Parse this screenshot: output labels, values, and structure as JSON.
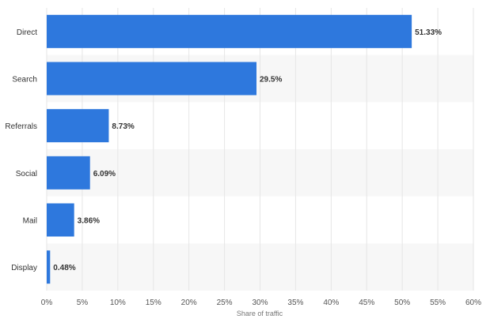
{
  "chart_data": {
    "type": "bar",
    "orientation": "horizontal",
    "categories": [
      "Direct",
      "Search",
      "Referrals",
      "Social",
      "Mail",
      "Display"
    ],
    "values": [
      51.33,
      29.5,
      8.73,
      6.09,
      3.86,
      0.48
    ],
    "value_labels": [
      "51.33%",
      "29.5%",
      "8.73%",
      "6.09%",
      "3.86%",
      "0.48%"
    ],
    "title": "",
    "xlabel": "Share of traffic",
    "ylabel": "",
    "xlim": [
      0,
      60
    ],
    "x_ticks": [
      0,
      5,
      10,
      15,
      20,
      25,
      30,
      35,
      40,
      45,
      50,
      55,
      60
    ],
    "x_tick_labels": [
      "0%",
      "5%",
      "10%",
      "15%",
      "20%",
      "25%",
      "30%",
      "35%",
      "40%",
      "45%",
      "50%",
      "55%",
      "60%"
    ],
    "grid": true,
    "legend": "none",
    "colors": {
      "bar": "#2e78dd",
      "band": "#f7f7f7",
      "grid": "#e6e6e6"
    }
  }
}
